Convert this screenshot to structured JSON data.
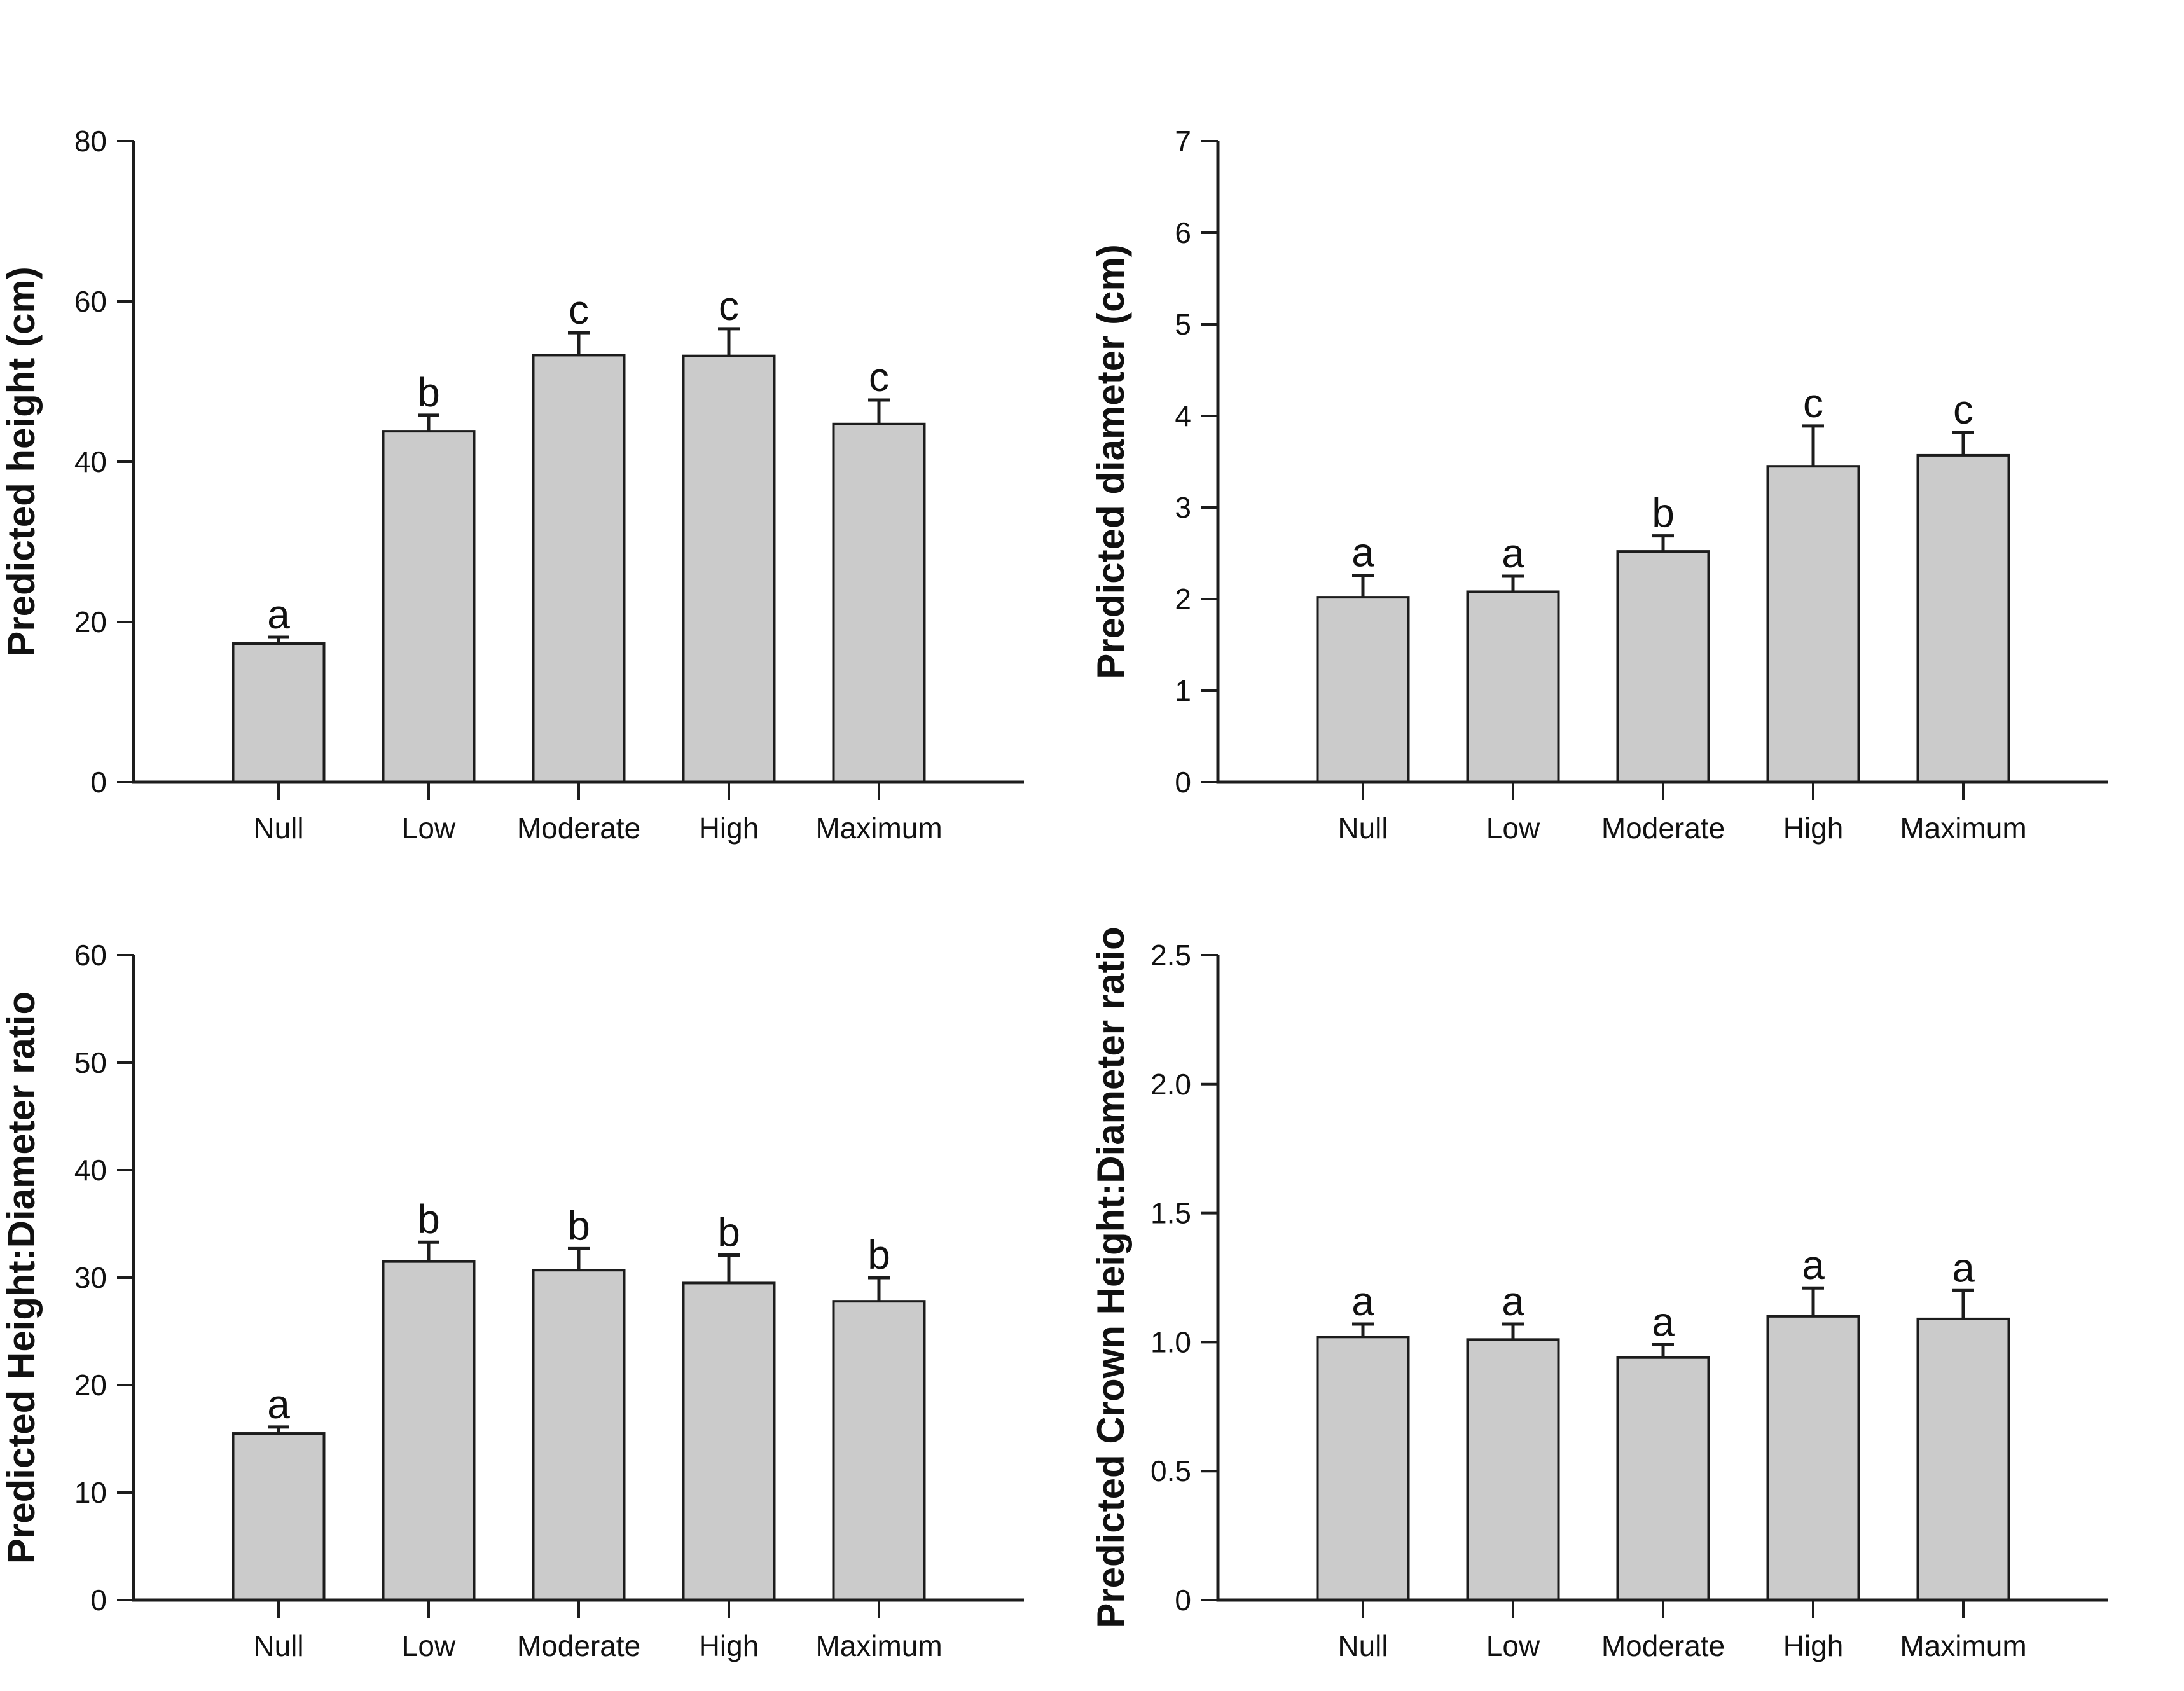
{
  "page": {
    "background": "#ffffff",
    "figure_type": "four-panel bar chart figure with standard-error bars and significance letters"
  },
  "style": {
    "bar_fill": "#cbcbcb",
    "bar_stroke": "#1c1c1c",
    "axis_color": "#1c1c1c",
    "text_color": "#111111"
  },
  "chart_data": [
    {
      "type": "bar",
      "position": "top-left",
      "ylabel": "Predicted height (cm)",
      "xlabel": "",
      "categories": [
        "Null",
        "Low",
        "Moderate",
        "High",
        "Maximum"
      ],
      "values": [
        17.3,
        43.8,
        53.3,
        53.2,
        44.7
      ],
      "errors_up": [
        0.8,
        2.0,
        2.8,
        3.4,
        3.0
      ],
      "sig_letters": [
        "a",
        "b",
        "c",
        "c",
        "c"
      ],
      "ylim": [
        0,
        80
      ],
      "yticks": [
        0,
        20,
        40,
        60,
        80
      ],
      "ytick_labels": [
        "0",
        "20",
        "40",
        "60",
        "80"
      ],
      "grid": false,
      "legend": "none"
    },
    {
      "type": "bar",
      "position": "top-right",
      "ylabel": "Predicted diameter (cm)",
      "xlabel": "",
      "categories": [
        "Null",
        "Low",
        "Moderate",
        "High",
        "Maximum"
      ],
      "values": [
        2.02,
        2.08,
        2.52,
        3.45,
        3.57
      ],
      "errors_up": [
        0.24,
        0.17,
        0.17,
        0.44,
        0.25
      ],
      "sig_letters": [
        "a",
        "a",
        "b",
        "c",
        "c"
      ],
      "ylim": [
        0,
        7
      ],
      "yticks": [
        0,
        1,
        2,
        3,
        4,
        5,
        6,
        7
      ],
      "ytick_labels": [
        "0",
        "1",
        "2",
        "3",
        "4",
        "5",
        "6",
        "7"
      ],
      "grid": false,
      "legend": "none"
    },
    {
      "type": "bar",
      "position": "bottom-left",
      "ylabel": "Predicted Height:Diameter ratio",
      "xlabel": "",
      "categories": [
        "Null",
        "Low",
        "Moderate",
        "High",
        "Maximum"
      ],
      "values": [
        15.5,
        31.5,
        30.7,
        29.5,
        27.8
      ],
      "errors_up": [
        0.6,
        1.8,
        2.0,
        2.6,
        2.2
      ],
      "sig_letters": [
        "a",
        "b",
        "b",
        "b",
        "b"
      ],
      "ylim": [
        0,
        60
      ],
      "yticks": [
        0,
        10,
        20,
        30,
        40,
        50,
        60
      ],
      "ytick_labels": [
        "0",
        "10",
        "20",
        "30",
        "40",
        "50",
        "60"
      ],
      "grid": false,
      "legend": "none"
    },
    {
      "type": "bar",
      "position": "bottom-right",
      "ylabel": "Predicted Crown Height:Diameter ratio",
      "xlabel": "",
      "categories": [
        "Null",
        "Low",
        "Moderate",
        "High",
        "Maximum"
      ],
      "values": [
        1.02,
        1.01,
        0.94,
        1.1,
        1.09
      ],
      "errors_up": [
        0.05,
        0.06,
        0.05,
        0.11,
        0.11
      ],
      "sig_letters": [
        "a",
        "a",
        "a",
        "a",
        "a"
      ],
      "ylim": [
        0,
        2.5
      ],
      "yticks": [
        0,
        0.5,
        1.0,
        1.5,
        2.0,
        2.5
      ],
      "ytick_labels": [
        "0",
        "0.5",
        "1.0",
        "1.5",
        "2.0",
        "2.5"
      ],
      "grid": false,
      "legend": "none"
    }
  ]
}
